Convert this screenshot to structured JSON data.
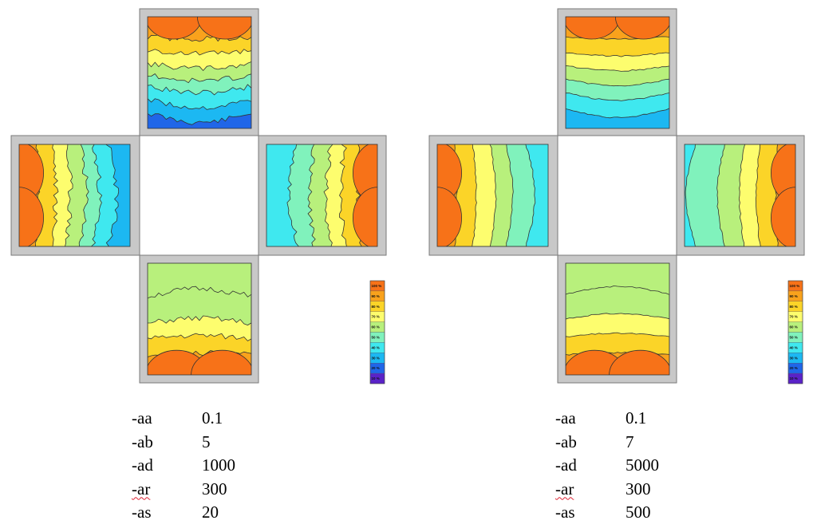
{
  "colors": {
    "frame": "#c8c8c8",
    "frame_border": "#7a7a7a",
    "contour_line": "#333333",
    "band_100": "#f77218",
    "band_90": "#f9a21c",
    "band_80": "#fbd428",
    "band_70": "#fdfd6e",
    "band_60": "#b8f07c",
    "band_50": "#80f2bc",
    "band_40": "#3fe8ef",
    "band_30": "#1cb8f2",
    "band_20": "#2066e8",
    "band_10": "#5a22c8",
    "band_0": "#3a0f8a"
  },
  "legend_ticks": [
    "100 %",
    "90 %",
    "80 %",
    "70 %",
    "60 %",
    "50 %",
    "40 %",
    "30 %",
    "20 %",
    "10 %"
  ],
  "panels": [
    {
      "params": [
        {
          "name": "-aa",
          "value": "0.1"
        },
        {
          "name": "-ab",
          "value": "5"
        },
        {
          "name": "-ad",
          "value": "1000"
        },
        {
          "name": "-ar",
          "value": "300"
        },
        {
          "name": "-as",
          "value": "20"
        }
      ]
    },
    {
      "params": [
        {
          "name": "-aa",
          "value": "0.1"
        },
        {
          "name": "-ab",
          "value": "7"
        },
        {
          "name": "-ad",
          "value": "5000"
        },
        {
          "name": "-ar",
          "value": "300"
        },
        {
          "name": "-as",
          "value": "500"
        }
      ]
    }
  ]
}
